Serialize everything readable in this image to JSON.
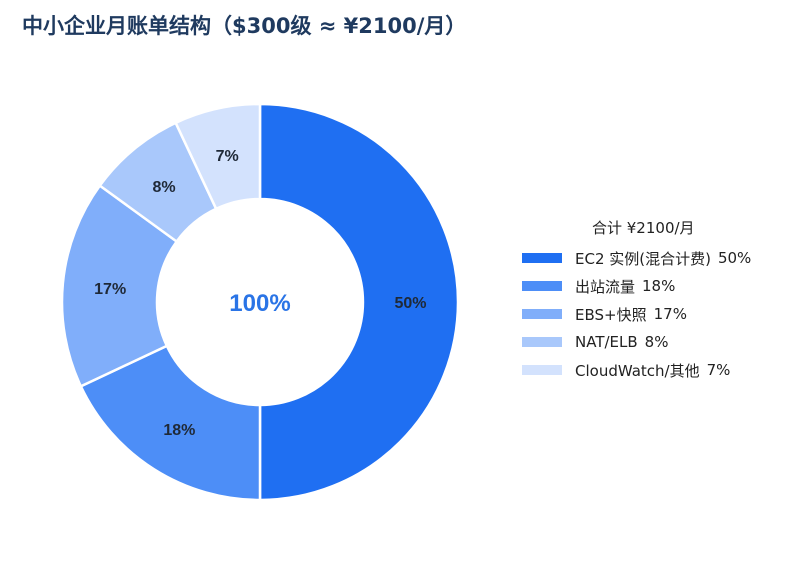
{
  "chart_data": {
    "type": "pie",
    "title": "中小企业月账单结构（$300级 ≈ ¥2100/月）",
    "center_label": "100%",
    "legend_title": "合计 ¥2100/月",
    "legend_position": "right",
    "slices": [
      {
        "label": "EC2 实例(混合计费)",
        "value": 50,
        "value_label": "50%",
        "color": "#1f6ff2"
      },
      {
        "label": "出站流量",
        "value": 18,
        "value_label": "18%",
        "color": "#4d8ef7"
      },
      {
        "label": "EBS+快照",
        "value": 17,
        "value_label": "17%",
        "color": "#80aefa"
      },
      {
        "label": "NAT/ELB",
        "value": 8,
        "value_label": "8%",
        "color": "#a9c8fb"
      },
      {
        "label": "CloudWatch/其他",
        "value": 7,
        "value_label": "7%",
        "color": "#d3e2fd"
      }
    ],
    "colors": {
      "title": "#1f3a5f",
      "center_label": "#2a74e6",
      "slice_label": "#1f2937"
    }
  }
}
